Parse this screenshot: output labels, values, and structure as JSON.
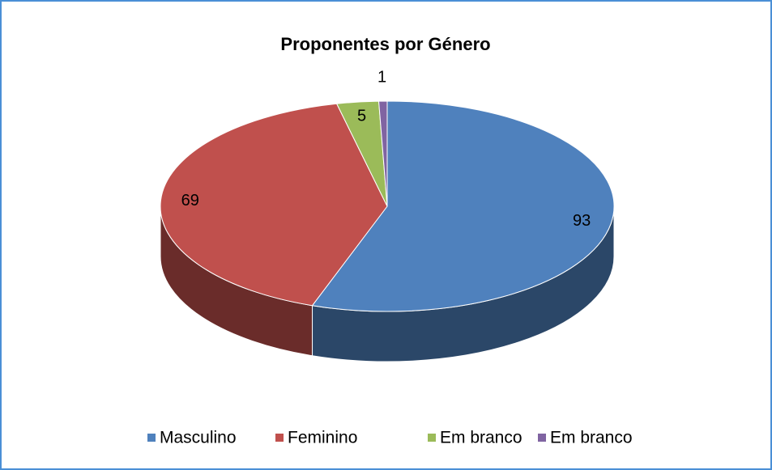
{
  "chart_data": {
    "type": "pie",
    "title": "Proponentes por Género",
    "categories": [
      "Masculino",
      "Feminino",
      "Em branco",
      "Em branco"
    ],
    "values": [
      93,
      69,
      5,
      1
    ],
    "colors": [
      "#4f81bd",
      "#c0504d",
      "#9bbb59",
      "#8064a2"
    ],
    "legend": "bottom"
  }
}
